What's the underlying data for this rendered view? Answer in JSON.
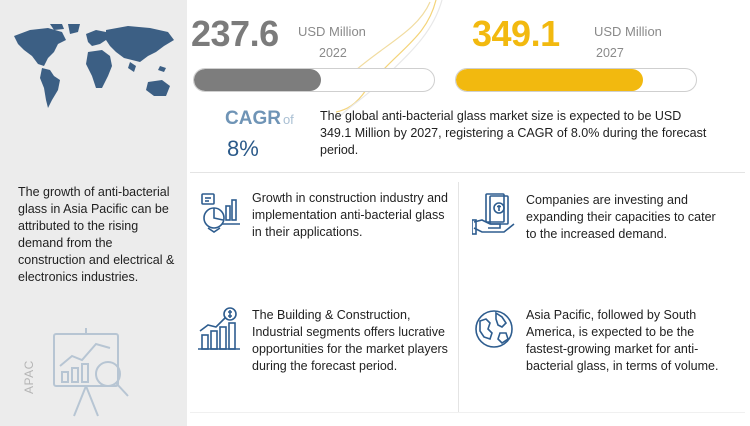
{
  "market": {
    "stat_2022": {
      "value": "237.6",
      "unit": "USD Million",
      "year": "2022",
      "bar_fill": 0.53
    },
    "stat_2027": {
      "value": "349.1",
      "unit": "USD Million",
      "year": "2027",
      "bar_fill": 0.78
    },
    "cagr": {
      "label": "CAGR",
      "of": "of",
      "value": "8%"
    },
    "summary": "The global anti-bacterial glass market size is expected to be USD 349.1 Million by 2027, registering a CAGR of 8.0% during the forecast period."
  },
  "left_panel": {
    "text": "The growth of anti-bacterial glass in Asia Pacific can be attributed to the rising demand from the construction and electrical & electronics industries.",
    "region_label": "APAC"
  },
  "points": [
    {
      "icon": "construction-chart-icon",
      "text": "Growth in construction industry and implementation anti-bacterial glass in their applications."
    },
    {
      "icon": "money-investment-icon",
      "text": "Companies are investing and expanding their capacities to cater to the increased demand."
    },
    {
      "icon": "growth-bar-chart-icon",
      "text": "The Building & Construction, Industrial segments offers lucrative opportunities for the market players during the forecast period."
    },
    {
      "icon": "globe-icon",
      "text": "Asia Pacific, followed by South America, is expected to be the fastest-growing market for anti-bacterial glass, in terms of volume."
    }
  ],
  "colors": {
    "accent_yellow": "#f2b90f",
    "gray_value": "#7b7b7b",
    "cagr_blue": "#2b5a8a",
    "icon_blue": "#2e5d8f",
    "panel_gray": "#ececec"
  }
}
